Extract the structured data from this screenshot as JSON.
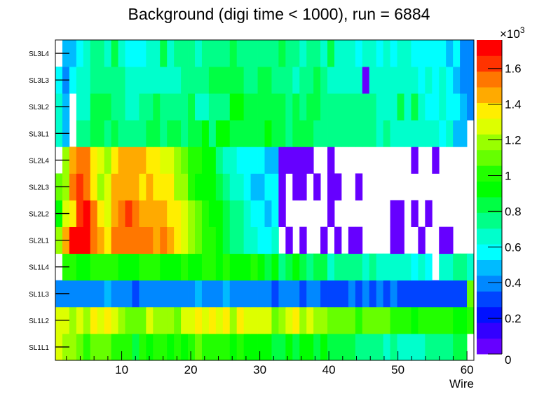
{
  "chart_data": {
    "type": "heatmap",
    "title": "Background (digi time < 1000), run = 6884",
    "xlabel": "Wire",
    "ylabel": "",
    "xlim": [
      0.4,
      61
    ],
    "x": [
      1,
      2,
      3,
      4,
      5,
      6,
      7,
      8,
      9,
      10,
      11,
      12,
      13,
      14,
      15,
      16,
      17,
      18,
      19,
      20,
      21,
      22,
      23,
      24,
      25,
      26,
      27,
      28,
      29,
      30,
      31,
      32,
      33,
      34,
      35,
      36,
      37,
      38,
      39,
      40,
      41,
      42,
      43,
      44,
      45,
      46,
      47,
      48,
      49,
      50,
      51,
      52,
      53,
      54,
      55,
      56,
      57,
      58,
      59,
      60
    ],
    "x_ticks": [
      10,
      20,
      30,
      40,
      50,
      60
    ],
    "y_categories": [
      "SL1L1",
      "SL1L2",
      "SL1L3",
      "SL1L4",
      "SL2L1",
      "SL2L2",
      "SL2L3",
      "SL2L4",
      "SL3L1",
      "SL3L2",
      "SL3L3",
      "SL3L4"
    ],
    "z_range": [
      0,
      1760
    ],
    "z_multiplier_label": "×10",
    "z_multiplier_exp": "3",
    "z_ticks": [
      0,
      200,
      400,
      600,
      800,
      1000,
      1200,
      1400,
      1600
    ],
    "z_tick_labels": [
      "0",
      "0.2",
      "0.4",
      "0.6",
      "0.8",
      "1",
      "1.2",
      "1.4",
      "1.6"
    ],
    "palette": [
      "#6600ff",
      "#3300ff",
      "#0011ff",
      "#0044ff",
      "#0088ff",
      "#00bbff",
      "#00ffff",
      "#00ffcc",
      "#00ff88",
      "#00ff44",
      "#00ff00",
      "#22ff00",
      "#66ff00",
      "#99ff00",
      "#ddff00",
      "#ffee00",
      "#ffaa00",
      "#ff7700",
      "#ff3300",
      "#ff0000"
    ],
    "z": [
      [
        1276,
        1188,
        1188,
        1100,
        1012,
        1100,
        1100,
        1100,
        1012,
        1012,
        1012,
        836,
        1012,
        924,
        1012,
        1012,
        924,
        1012,
        924,
        1012,
        1100,
        1012,
        1012,
        1012,
        1012,
        924,
        1012,
        924,
        924,
        924,
        924,
        836,
        836,
        924,
        836,
        924,
        924,
        836,
        924,
        836,
        836,
        836,
        836,
        748,
        748,
        748,
        748,
        660,
        748,
        660,
        660,
        660,
        660,
        748,
        748,
        748,
        748,
        836,
        836,
        0
      ],
      [
        1276,
        1276,
        1188,
        1276,
        1188,
        1364,
        1276,
        1364,
        1276,
        1188,
        1100,
        1100,
        1100,
        1276,
        1188,
        1188,
        1188,
        1100,
        1276,
        1276,
        1364,
        1276,
        1364,
        1276,
        1364,
        1188,
        1364,
        1276,
        1276,
        1276,
        1276,
        1100,
        1188,
        1276,
        1364,
        1188,
        1276,
        1188,
        1188,
        1100,
        1100,
        1100,
        1100,
        1012,
        1100,
        1100,
        1100,
        1100,
        1012,
        1012,
        1012,
        924,
        1012,
        1012,
        1012,
        1012,
        1012,
        924,
        924,
        1012
      ],
      [
        396,
        396,
        396,
        396,
        396,
        396,
        396,
        484,
        396,
        396,
        396,
        308,
        396,
        396,
        396,
        396,
        396,
        396,
        396,
        396,
        484,
        396,
        396,
        396,
        484,
        396,
        396,
        396,
        396,
        396,
        396,
        308,
        396,
        396,
        396,
        308,
        396,
        396,
        308,
        308,
        308,
        308,
        396,
        308,
        396,
        308,
        396,
        308,
        396,
        308,
        308,
        308,
        308,
        308,
        308,
        308,
        308,
        308,
        308,
        1100
      ],
      [
        0,
        1012,
        1012,
        924,
        924,
        1012,
        1012,
        1012,
        1012,
        924,
        924,
        924,
        1012,
        1012,
        1012,
        924,
        924,
        924,
        1012,
        924,
        924,
        1012,
        1012,
        924,
        1012,
        924,
        924,
        924,
        1012,
        924,
        836,
        924,
        748,
        836,
        924,
        836,
        748,
        836,
        836,
        660,
        748,
        748,
        748,
        748,
        660,
        748,
        660,
        660,
        660,
        660,
        660,
        572,
        660,
        572,
        0,
        660,
        660,
        748,
        748,
        660
      ],
      [
        1188,
        1452,
        1716,
        1716,
        1716,
        1540,
        1452,
        1364,
        1540,
        1540,
        1540,
        1540,
        1540,
        1540,
        1452,
        1540,
        1452,
        1364,
        1276,
        1188,
        1100,
        1012,
        1012,
        924,
        836,
        748,
        748,
        660,
        660,
        572,
        572,
        660,
        0,
        44,
        0,
        44,
        0,
        0,
        44,
        0,
        44,
        0,
        44,
        44,
        0,
        0,
        0,
        0,
        44,
        44,
        0,
        0,
        44,
        0,
        0,
        44,
        44,
        0,
        0,
        0
      ],
      [
        924,
        1276,
        1364,
        1628,
        1716,
        1540,
        1364,
        1276,
        1452,
        1540,
        1628,
        1540,
        1452,
        1452,
        1452,
        1452,
        1364,
        1364,
        1276,
        1188,
        1100,
        1012,
        924,
        924,
        836,
        748,
        748,
        660,
        572,
        572,
        484,
        572,
        44,
        0,
        0,
        0,
        0,
        0,
        0,
        44,
        0,
        0,
        0,
        0,
        0,
        0,
        0,
        0,
        44,
        44,
        0,
        44,
        0,
        44,
        0,
        0,
        0,
        0,
        0,
        0
      ],
      [
        1100,
        1188,
        1540,
        1628,
        1540,
        1364,
        1188,
        1276,
        1452,
        1452,
        1452,
        1452,
        1364,
        1452,
        1364,
        1364,
        1364,
        1188,
        1188,
        1012,
        924,
        924,
        924,
        836,
        748,
        660,
        660,
        572,
        484,
        484,
        572,
        572,
        44,
        0,
        44,
        44,
        0,
        44,
        0,
        44,
        44,
        0,
        0,
        44,
        0,
        0,
        0,
        0,
        0,
        0,
        0,
        0,
        0,
        0,
        0,
        0,
        0,
        0,
        0,
        0
      ],
      [
        0,
        1188,
        1452,
        1540,
        1540,
        1364,
        1276,
        1188,
        1364,
        1452,
        1452,
        1452,
        1452,
        1364,
        1364,
        1276,
        1276,
        1188,
        1100,
        1012,
        1012,
        924,
        924,
        748,
        660,
        660,
        572,
        572,
        572,
        572,
        484,
        484,
        44,
        44,
        44,
        44,
        44,
        0,
        0,
        44,
        0,
        0,
        0,
        0,
        0,
        0,
        0,
        0,
        0,
        0,
        0,
        44,
        0,
        0,
        44,
        0,
        0,
        0,
        0,
        0
      ],
      [
        660,
        484,
        0,
        748,
        748,
        836,
        836,
        748,
        836,
        748,
        748,
        748,
        748,
        836,
        836,
        748,
        836,
        836,
        748,
        836,
        836,
        924,
        748,
        924,
        924,
        836,
        836,
        836,
        836,
        836,
        924,
        836,
        836,
        748,
        836,
        836,
        836,
        748,
        748,
        748,
        748,
        748,
        748,
        748,
        748,
        748,
        660,
        748,
        660,
        660,
        660,
        660,
        660,
        660,
        660,
        572,
        660,
        484,
        484,
        0
      ],
      [
        660,
        484,
        0,
        660,
        660,
        836,
        836,
        836,
        748,
        748,
        660,
        660,
        748,
        748,
        836,
        748,
        748,
        748,
        748,
        836,
        660,
        660,
        748,
        748,
        748,
        924,
        924,
        836,
        836,
        836,
        836,
        836,
        836,
        748,
        836,
        748,
        836,
        836,
        748,
        748,
        748,
        748,
        748,
        748,
        748,
        748,
        660,
        660,
        660,
        836,
        660,
        836,
        660,
        572,
        572,
        660,
        572,
        572,
        484,
        396
      ],
      [
        572,
        396,
        572,
        660,
        660,
        748,
        748,
        748,
        748,
        748,
        660,
        660,
        660,
        660,
        660,
        660,
        660,
        660,
        748,
        748,
        748,
        748,
        836,
        836,
        836,
        836,
        836,
        748,
        748,
        836,
        836,
        748,
        748,
        748,
        660,
        748,
        748,
        836,
        748,
        660,
        660,
        660,
        660,
        660,
        44,
        660,
        660,
        660,
        660,
        660,
        660,
        660,
        572,
        660,
        572,
        660,
        572,
        484,
        396,
        396
      ],
      [
        0,
        484,
        484,
        572,
        660,
        748,
        748,
        660,
        836,
        660,
        572,
        572,
        572,
        660,
        660,
        836,
        660,
        748,
        748,
        748,
        660,
        748,
        748,
        748,
        748,
        836,
        748,
        748,
        748,
        748,
        748,
        748,
        836,
        748,
        748,
        660,
        748,
        748,
        660,
        836,
        660,
        660,
        660,
        572,
        660,
        660,
        572,
        660,
        572,
        660,
        660,
        572,
        572,
        572,
        572,
        572,
        484,
        572,
        396,
        396
      ]
    ]
  }
}
